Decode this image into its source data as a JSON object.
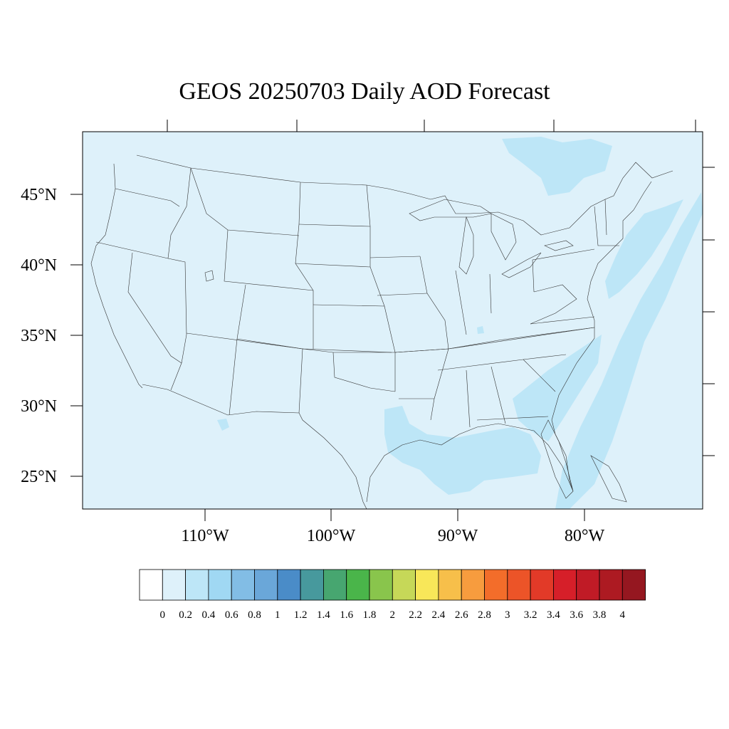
{
  "title": "GEOS 20250703 Daily AOD Forecast",
  "map": {
    "projection": "Lambert conformal (CONUS)",
    "background_level": "0 - 0.2",
    "lat_labels": [
      "45°N",
      "40°N",
      "35°N",
      "30°N",
      "25°N"
    ],
    "lon_labels": [
      "110°W",
      "100°W",
      "90°W",
      "80°W"
    ],
    "regions_elevated_aod": [
      {
        "region": "Gulf of Mexico coast",
        "level": "0.2 - 0.4"
      },
      {
        "region": "Atlantic offshore band",
        "level": "0.2 - 0.4"
      },
      {
        "region": "Eastern Canada / Quebec",
        "level": "0.2 - 0.4"
      }
    ]
  },
  "colorbar": {
    "labels": [
      "0",
      "0.2",
      "0.4",
      "0.6",
      "0.8",
      "1",
      "1.2",
      "1.4",
      "1.6",
      "1.8",
      "2",
      "2.2",
      "2.4",
      "2.6",
      "2.8",
      "3",
      "3.2",
      "3.4",
      "3.6",
      "3.8",
      "4"
    ],
    "colors": [
      "#ffffff",
      "#def1fa",
      "#bde6f7",
      "#a0d8f3",
      "#82bde5",
      "#6aa7d9",
      "#4a8cc8",
      "#47999d",
      "#47a670",
      "#4ab54a",
      "#89c54c",
      "#c6d858",
      "#f8e759",
      "#f7bf4a",
      "#f79c3e",
      "#f36d2a",
      "#ec5428",
      "#e23a28",
      "#d61f29",
      "#c01b26",
      "#ad1a22",
      "#951720"
    ]
  }
}
